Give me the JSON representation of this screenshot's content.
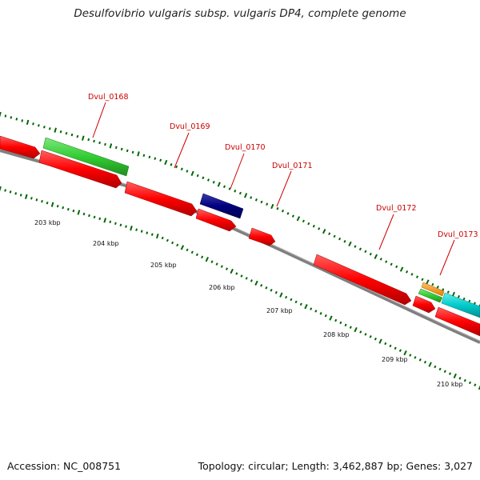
{
  "title": "Desulfovibrio vulgaris subsp. vulgaris DP4, complete genome",
  "accession_text": "Accession: NC_008751",
  "summary_text": "Topology: circular; Length: 3,462,887 bp; Genes: 3,027",
  "scale_ticks": [
    "203 kbp",
    "204 kbp",
    "205 kbp",
    "206 kbp",
    "207 kbp",
    "208 kbp",
    "209 kbp",
    "210 kbp"
  ],
  "gene_labels": [
    "Dvul_0168",
    "Dvul_0169",
    "Dvul_0170",
    "Dvul_0171",
    "Dvul_0172",
    "Dvul_0173"
  ],
  "colors": {
    "cds": "#ff0000",
    "green_feature": "#33cc33",
    "navy_feature": "#000080",
    "orange_feature": "#ff9900",
    "cyan_feature": "#00cccc",
    "backbone": "#808080",
    "ticks": "#006600",
    "label": "#cc0000"
  }
}
